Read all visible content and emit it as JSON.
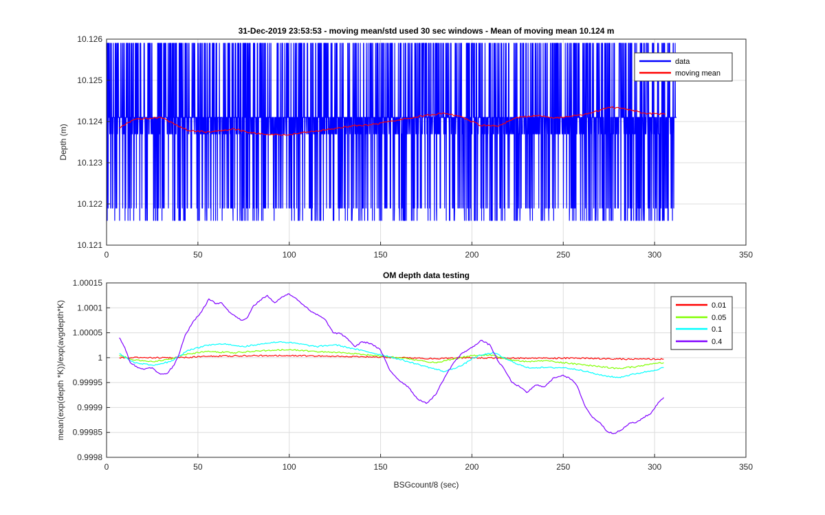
{
  "chart_data": [
    {
      "type": "line",
      "title": "31-Dec-2019 23:53:53 - moving mean/std used 30 sec windows - Mean of moving mean 10.124 m",
      "xlabel": "",
      "ylabel": "Depth (m)",
      "xlim": [
        0,
        350
      ],
      "ylim": [
        10.121,
        10.126
      ],
      "xticks": [
        "0",
        "50",
        "100",
        "150",
        "200",
        "250",
        "300",
        "350"
      ],
      "yticks": [
        "10.121",
        "10.122",
        "10.123",
        "10.124",
        "10.125",
        "10.126"
      ],
      "grid": true,
      "legend_position": "top-right",
      "series": [
        {
          "name": "data",
          "color": "#0000ff",
          "x_range": [
            0,
            312
          ],
          "levels": [
            10.1216,
            10.1219,
            10.1237,
            10.1241,
            10.1259
          ]
        },
        {
          "name": "moving mean",
          "color": "#ff0000",
          "x": [
            7,
            15,
            22,
            30,
            38,
            45,
            55,
            70,
            80,
            90,
            100,
            110,
            120,
            135,
            145,
            155,
            165,
            175,
            185,
            195,
            205,
            215,
            225,
            235,
            245,
            255,
            265,
            275,
            285,
            295,
            306
          ],
          "values": [
            10.12385,
            10.12405,
            10.12407,
            10.1241,
            10.12392,
            10.12378,
            10.12375,
            10.12382,
            10.12372,
            10.12368,
            10.12368,
            10.12375,
            10.1238,
            10.1239,
            10.12392,
            10.124,
            10.12408,
            10.12415,
            10.1242,
            10.1241,
            10.1239,
            10.1239,
            10.1241,
            10.12415,
            10.12408,
            10.12413,
            10.1242,
            10.12435,
            10.1243,
            10.1242,
            10.12418
          ]
        }
      ]
    },
    {
      "type": "line",
      "title": "OM depth data testing",
      "xlabel": "BSGcount/8 (sec)",
      "ylabel": "mean(exp(depth *K))/exp(avgdepth*K)",
      "xlim": [
        0,
        350
      ],
      "ylim": [
        0.9998,
        1.00015
      ],
      "xticks": [
        "0",
        "50",
        "100",
        "150",
        "200",
        "250",
        "300",
        "350"
      ],
      "yticks": [
        "0.9998",
        "0.99985",
        "0.9999",
        "0.99995",
        "1",
        "1.00005",
        "1.0001",
        "1.00015"
      ],
      "grid": true,
      "legend_position": "top-right",
      "series": [
        {
          "name": "0.01",
          "color": "#ff0000",
          "x": [
            7,
            20,
            40,
            60,
            80,
            100,
            120,
            140,
            160,
            180,
            200,
            220,
            240,
            260,
            280,
            305
          ],
          "values": [
            1.0,
            1.0,
            1.0,
            1.000003,
            1.000004,
            1.000004,
            1.000003,
            1.000002,
            1.0,
            0.999998,
            1.0,
            0.999999,
            0.999999,
            0.999999,
            0.999997,
            0.999997
          ]
        },
        {
          "name": "0.05",
          "color": "#80ff00",
          "x": [
            7,
            15,
            25,
            35,
            45,
            55,
            70,
            85,
            100,
            115,
            130,
            145,
            160,
            170,
            180,
            190,
            200,
            210,
            220,
            230,
            240,
            250,
            260,
            270,
            280,
            290,
            300,
            305
          ],
          "values": [
            1.000005,
            0.999995,
            0.999992,
            0.999997,
            1.000008,
            1.000012,
            1.00001,
            1.000014,
            1.000016,
            1.000012,
            1.00001,
            1.000005,
            1.0,
            0.999995,
            0.99999,
            0.999997,
            1.000004,
            1.000006,
            0.999996,
            0.999992,
            0.999994,
            0.99999,
            0.999986,
            0.999982,
            0.999978,
            0.999982,
            0.999988,
            0.99999
          ]
        },
        {
          "name": "0.1",
          "color": "#00ffff",
          "x": [
            7,
            15,
            25,
            35,
            45,
            55,
            65,
            75,
            85,
            95,
            105,
            115,
            125,
            135,
            145,
            155,
            165,
            175,
            185,
            195,
            200,
            205,
            212,
            220,
            230,
            240,
            250,
            260,
            270,
            280,
            290,
            300,
            305
          ],
          "values": [
            1.000008,
            0.99999,
            0.999985,
            0.999992,
            1.000015,
            1.000025,
            1.000028,
            1.000022,
            1.000028,
            1.000032,
            1.000028,
            1.000022,
            1.000026,
            1.000018,
            1.00001,
            1.000002,
            0.999992,
            0.999982,
            0.999972,
            0.999985,
            0.999998,
            1.000005,
            1.00001,
            0.999995,
            0.99998,
            0.99998,
            0.99998,
            0.999975,
            0.999965,
            0.99996,
            0.999968,
            0.999975,
            0.99998
          ]
        },
        {
          "name": "0.4",
          "color": "#8000ff",
          "x": [
            7,
            10,
            13,
            17,
            21,
            25,
            29,
            33,
            37,
            40,
            43,
            48,
            52,
            56,
            60,
            63,
            67,
            70,
            74,
            77,
            80,
            84,
            88,
            92,
            96,
            100,
            104,
            108,
            112,
            116,
            120,
            124,
            128,
            132,
            136,
            140,
            145,
            150,
            155,
            160,
            165,
            170,
            175,
            180,
            185,
            190,
            195,
            200,
            205,
            210,
            214,
            218,
            222,
            226,
            230,
            235,
            240,
            245,
            250,
            255,
            258,
            262,
            266,
            270,
            274,
            278,
            282,
            286,
            290,
            294,
            298,
            302,
            305
          ],
          "values": [
            1.00004,
            1.00002,
            0.99999,
            0.99998,
            0.999977,
            0.99998,
            0.999968,
            0.999968,
            0.999985,
            1.00001,
            1.000045,
            1.000075,
            1.000092,
            1.000118,
            1.000108,
            1.00011,
            1.000092,
            1.000085,
            1.000075,
            1.00008,
            1.000102,
            1.000115,
            1.000125,
            1.00011,
            1.000122,
            1.000128,
            1.000118,
            1.000105,
            1.000092,
            1.000085,
            1.000075,
            1.00005,
            1.000048,
            1.000038,
            1.000022,
            1.000032,
            1.000028,
            1.000015,
            0.999975,
            0.999955,
            0.999942,
            0.999918,
            0.999908,
            0.999925,
            0.99996,
            0.99999,
            1.00001,
            1.00002,
            1.000035,
            1.000025,
            0.999995,
            0.999975,
            0.99995,
            0.999942,
            0.99993,
            0.999945,
            0.999942,
            0.99996,
            0.999965,
            0.999955,
            0.99994,
            0.999902,
            0.99988,
            0.99987,
            0.999852,
            0.999848,
            0.999855,
            0.999868,
            0.99987,
            0.99988,
            0.999888,
            0.99991,
            0.99992
          ]
        }
      ]
    }
  ]
}
